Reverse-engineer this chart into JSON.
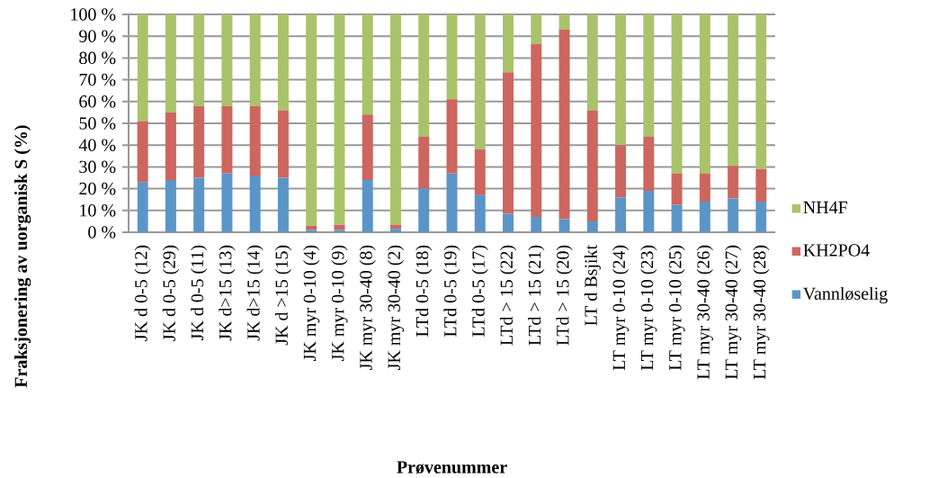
{
  "chart_data": {
    "type": "bar",
    "stacked": true,
    "xlabel": "Prøvenummer",
    "ylabel": "Fraksjonering av uorganisk S (%)",
    "categories": [
      "JK d 0-5 (12)",
      "JK d 0-5 (29)",
      "JK d 0-5 (11)",
      "JK d>15 (13)",
      "JK d>15 (14)",
      "JK d >15 (15)",
      "JK myr 0-10 (4)",
      "JK myr 0-10 (9)",
      "JK myr 30-40 (8)",
      "JK myr 30-40 (2)",
      "LTd 0-5 (18)",
      "LTd 0-5 (19)",
      "LTd 0-5 (17)",
      "LTd > 15 (22)",
      "LTd > 15 (21)",
      "LTd > 15 (20)",
      "LT d Bsjikt",
      "LT myr 0-10 (24)",
      "LT myr 0-10 (23)",
      "LT myr 0-10 (25)",
      "LT myr 30-40 (26)",
      "LT myr 30-40 (27)",
      "LT myr 30-40 (28)"
    ],
    "series": [
      {
        "name": "Vannløselig",
        "color": "#5b95c8",
        "values": [
          23,
          24,
          25,
          27,
          26,
          25,
          1,
          1,
          24,
          1.5,
          20,
          27,
          17,
          8.5,
          7,
          6,
          5,
          16,
          19,
          12.5,
          14,
          15.5,
          14
        ]
      },
      {
        "name": "KH2PO4",
        "color": "#cd665e",
        "values": [
          28,
          31,
          33,
          31,
          32,
          31,
          2,
          2.5,
          30,
          2,
          24,
          34,
          21,
          65,
          79.5,
          87,
          51,
          24,
          25,
          14.5,
          13,
          15,
          15
        ]
      },
      {
        "name": "NH4F",
        "color": "#a9c36a",
        "values": [
          49,
          45,
          42,
          42,
          42,
          44,
          97,
          96.5,
          46,
          96.5,
          56,
          39,
          62,
          26.5,
          13.5,
          7,
          44,
          60,
          56,
          73,
          73,
          69.5,
          71
        ]
      }
    ],
    "ylim": [
      0,
      100
    ],
    "yticks": [
      {
        "value": 0,
        "label": "0 %"
      },
      {
        "value": 10,
        "label": "10 %"
      },
      {
        "value": 20,
        "label": "20 %"
      },
      {
        "value": 30,
        "label": "30 %"
      },
      {
        "value": 40,
        "label": "40 %"
      },
      {
        "value": 50,
        "label": "50 %"
      },
      {
        "value": 60,
        "label": "60 %"
      },
      {
        "value": 70,
        "label": "70 %"
      },
      {
        "value": 80,
        "label": "80 %"
      },
      {
        "value": 90,
        "label": "90 %"
      },
      {
        "value": 100,
        "label": "100 %"
      }
    ],
    "grid": "y",
    "legend": "right"
  }
}
